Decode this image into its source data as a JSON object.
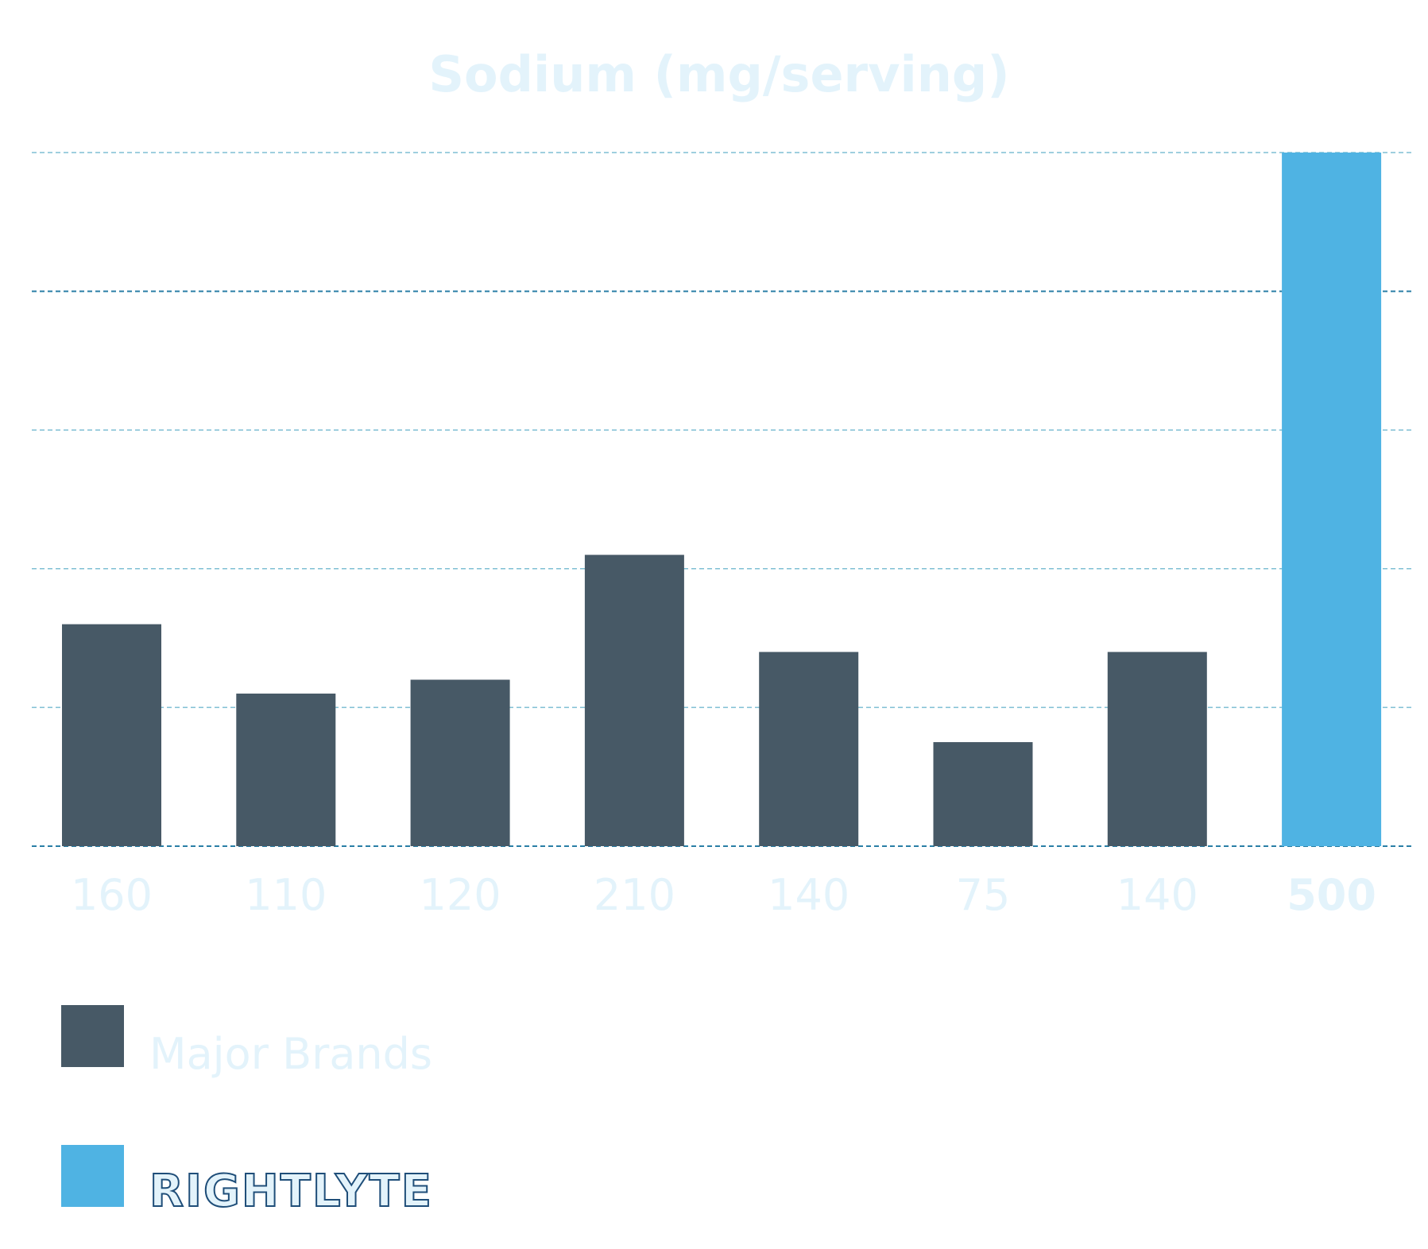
{
  "colors": {
    "title": "#e3f3fb",
    "tick_label": "#e3f3fb",
    "legend_label": "#e3f3fb",
    "major_brands": "#475966",
    "rightlyte": "#4fb3e3",
    "grid_light": "#7fbfd4",
    "grid_dark": "#2a7fa6",
    "logo_stroke": "#1f4e79",
    "logo_fill": "#e3f3fb"
  },
  "chart_data": {
    "type": "bar",
    "title": "Sodium (mg/serving)",
    "xlabel": "",
    "ylabel": "",
    "ylim": [
      0,
      500
    ],
    "grid": true,
    "grid_style": "dashed",
    "categories": [
      "160",
      "110",
      "120",
      "210",
      "140",
      "75",
      "140",
      "500"
    ],
    "values": [
      160,
      110,
      120,
      210,
      140,
      75,
      140,
      500
    ],
    "series_assignment": [
      "Major Brands",
      "Major Brands",
      "Major Brands",
      "Major Brands",
      "Major Brands",
      "Major Brands",
      "Major Brands",
      "RIGHTLYTE"
    ],
    "legend": {
      "placement": "bottom-left",
      "entries": [
        {
          "label": "Major Brands",
          "color": "#475966"
        },
        {
          "label": "RIGHTLYTE",
          "color": "#4fb3e3",
          "rendered_as_logo": true
        }
      ]
    }
  }
}
